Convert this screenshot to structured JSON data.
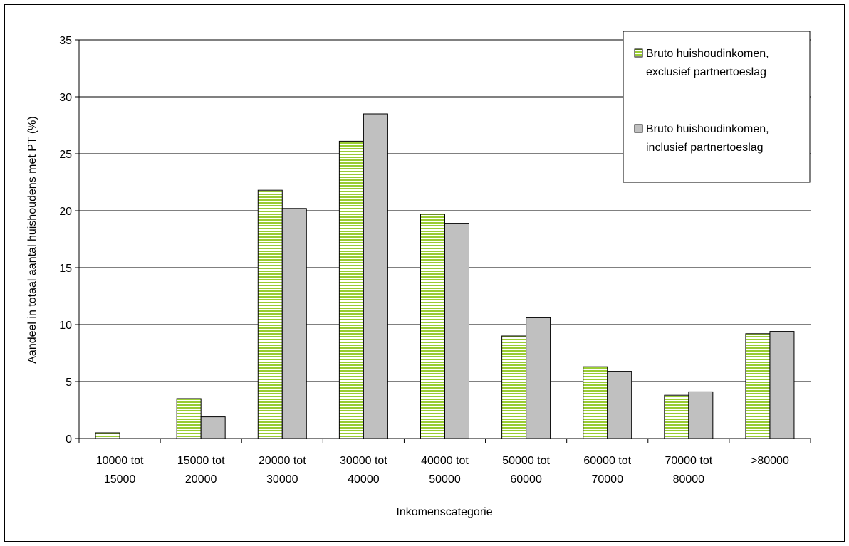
{
  "chart_data": {
    "type": "bar",
    "xlabel": "Inkomenscategorie",
    "ylabel": "Aandeel in totaal aantal huishoudens met PT (%)",
    "ylim": [
      0,
      35
    ],
    "yticks": [
      0,
      5,
      10,
      15,
      20,
      25,
      30,
      35
    ],
    "grid": true,
    "legend_position": "top-right",
    "categories": [
      [
        "10000 tot",
        "15000"
      ],
      [
        "15000 tot",
        "20000"
      ],
      [
        "20000 tot",
        "30000"
      ],
      [
        "30000 tot",
        "40000"
      ],
      [
        "40000 tot",
        "50000"
      ],
      [
        "50000 tot",
        "60000"
      ],
      [
        "60000 tot",
        "70000"
      ],
      [
        "70000 tot",
        "80000"
      ],
      [
        ">80000"
      ]
    ],
    "series": [
      {
        "name": [
          "Bruto huishoudinkomen,",
          "exclusief partnertoeslag"
        ],
        "color": "#99CC33",
        "pattern": "horizontal-stripes",
        "values": [
          0.5,
          3.5,
          21.8,
          26.1,
          19.7,
          9.0,
          6.3,
          3.8,
          9.2
        ]
      },
      {
        "name": [
          "Bruto huishoudinkomen,",
          "inclusief partnertoeslag"
        ],
        "color": "#C0C0C0",
        "pattern": "solid",
        "values": [
          0,
          1.9,
          20.2,
          28.5,
          18.9,
          10.6,
          5.9,
          4.1,
          9.4
        ]
      }
    ]
  }
}
